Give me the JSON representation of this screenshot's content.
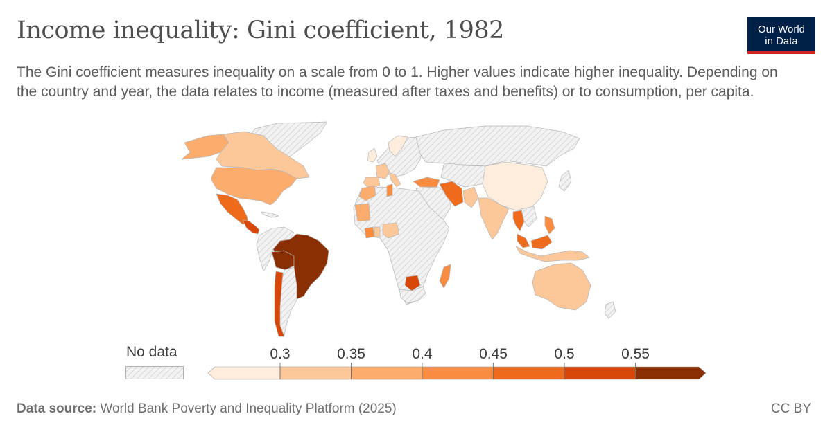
{
  "header": {
    "title": "Income inequality: Gini coefficient, 1982",
    "subtitle": "The Gini coefficient measures inequality on a scale from 0 to 1. Higher values indicate higher inequality. Depending on the country and year, the data relates to income (measured after taxes and benefits) or to consumption, per capita."
  },
  "logo": {
    "line1": "Our World",
    "line2": "in Data"
  },
  "legend": {
    "no_data_label": "No data",
    "ticks": [
      "0.3",
      "0.35",
      "0.4",
      "0.45",
      "0.5",
      "0.55"
    ],
    "bins": [
      {
        "range": "<0.3",
        "color": "#feeddc"
      },
      {
        "range": "0.3-0.35",
        "color": "#fdc899"
      },
      {
        "range": "0.35-0.4",
        "color": "#fcac6d"
      },
      {
        "range": "0.4-0.45",
        "color": "#f98c40"
      },
      {
        "range": "0.45-0.5",
        "color": "#ee6b1c"
      },
      {
        "range": "0.5-0.55",
        "color": "#d84707"
      },
      {
        "range": ">0.55",
        "color": "#8a2f04"
      }
    ],
    "no_data_color": "#dcdcdc"
  },
  "chart_data": {
    "type": "choropleth",
    "variable": "Gini coefficient",
    "year": 1982,
    "countries": [
      {
        "name": "Brazil",
        "bin": ">0.55"
      },
      {
        "name": "Bolivia",
        "bin": ">0.55"
      },
      {
        "name": "Chile",
        "bin": "0.5-0.55"
      },
      {
        "name": "Mexico",
        "bin": "0.45-0.5"
      },
      {
        "name": "Guatemala",
        "bin": "0.5-0.55"
      },
      {
        "name": "Costa Rica",
        "bin": "0.45-0.5"
      },
      {
        "name": "United States",
        "bin": "0.35-0.4"
      },
      {
        "name": "Canada",
        "bin": "0.3-0.35"
      },
      {
        "name": "China",
        "bin": "<0.3"
      },
      {
        "name": "India",
        "bin": "0.3-0.35"
      },
      {
        "name": "Iran",
        "bin": "0.45-0.5"
      },
      {
        "name": "Turkey",
        "bin": "0.4-0.45"
      },
      {
        "name": "Thailand",
        "bin": "0.45-0.5"
      },
      {
        "name": "Malaysia",
        "bin": "0.45-0.5"
      },
      {
        "name": "Philippines",
        "bin": "0.4-0.45"
      },
      {
        "name": "Indonesia",
        "bin": "0.3-0.35"
      },
      {
        "name": "Australia",
        "bin": "0.3-0.35"
      },
      {
        "name": "Madagascar",
        "bin": "0.4-0.45"
      },
      {
        "name": "Botswana",
        "bin": "0.5-0.55"
      },
      {
        "name": "Mauritania",
        "bin": "0.35-0.4"
      },
      {
        "name": "Nigeria",
        "bin": "0.3-0.35"
      },
      {
        "name": "Ivory Coast",
        "bin": "0.4-0.45"
      },
      {
        "name": "Ghana",
        "bin": "0.3-0.35"
      },
      {
        "name": "Morocco",
        "bin": "0.35-0.4"
      },
      {
        "name": "Tunisia",
        "bin": "0.4-0.45"
      },
      {
        "name": "Spain",
        "bin": "0.3-0.35"
      },
      {
        "name": "France",
        "bin": "0.3-0.35"
      },
      {
        "name": "Italy",
        "bin": "0.3-0.35"
      },
      {
        "name": "United Kingdom",
        "bin": "<0.3"
      },
      {
        "name": "Sweden",
        "bin": "<0.3"
      },
      {
        "name": "Greenland",
        "bin": "no data"
      },
      {
        "name": "Russia",
        "bin": "no data"
      }
    ]
  },
  "footer": {
    "source_label": "Data source:",
    "source_text": "World Bank Poverty and Inequality Platform (2025)",
    "license": "CC BY"
  }
}
